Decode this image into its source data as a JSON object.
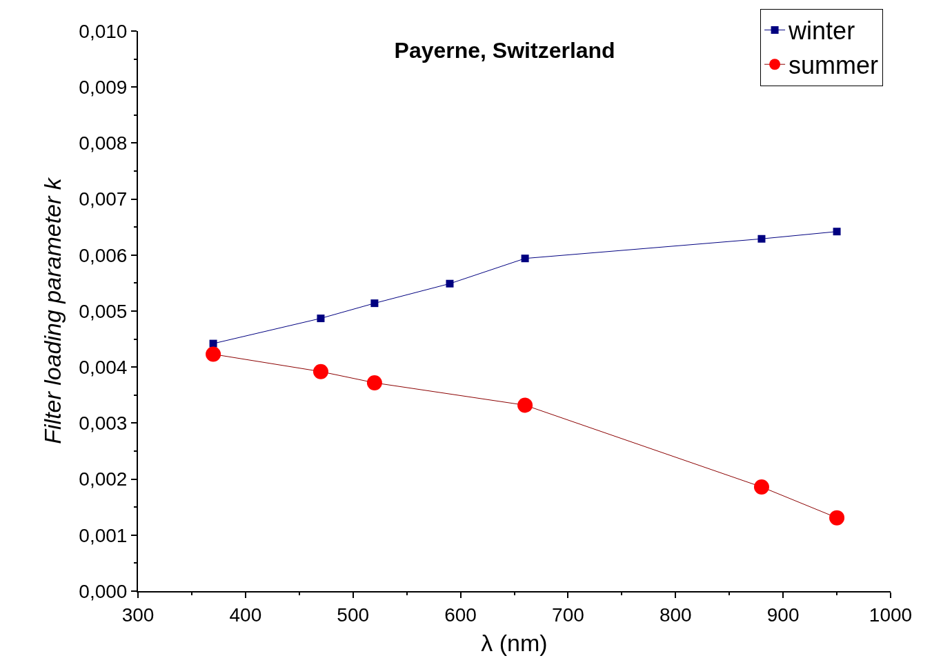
{
  "chart_data": {
    "type": "line",
    "title": "Payerne, Switzerland",
    "xlabel": "λ (nm)",
    "ylabel": "Filter loading parameter k",
    "xlim": [
      300,
      1000
    ],
    "ylim": [
      0,
      0.01
    ],
    "xticks": [
      300,
      400,
      500,
      600,
      700,
      800,
      900,
      1000,
      {
        "value": 350,
        "label": null
      },
      {
        "value": 450,
        "label": null
      },
      {
        "value": 550,
        "label": null
      },
      {
        "value": 650,
        "label": null
      },
      {
        "value": 750,
        "label": null
      },
      {
        "value": 850,
        "label": null
      },
      {
        "value": 950,
        "label": null
      }
    ],
    "yticks": [
      {
        "value": 0,
        "label": "0,000"
      },
      {
        "value": 0.001,
        "label": "0,001"
      },
      {
        "value": 0.002,
        "label": "0,002"
      },
      {
        "value": 0.003,
        "label": "0,003"
      },
      {
        "value": 0.004,
        "label": "0,004"
      },
      {
        "value": 0.005,
        "label": "0,005"
      },
      {
        "value": 0.006,
        "label": "0,006"
      },
      {
        "value": 0.007,
        "label": "0,007"
      },
      {
        "value": 0.008,
        "label": "0,008"
      },
      {
        "value": 0.009,
        "label": "0,009"
      },
      {
        "value": 0.01,
        "label": "0,010"
      },
      {
        "value": 0.0005,
        "label": null
      },
      {
        "value": 0.0015,
        "label": null
      },
      {
        "value": 0.0025,
        "label": null
      },
      {
        "value": 0.0035,
        "label": null
      },
      {
        "value": 0.0045,
        "label": null
      },
      {
        "value": 0.0055,
        "label": null
      },
      {
        "value": 0.0065,
        "label": null
      },
      {
        "value": 0.0075,
        "label": null
      },
      {
        "value": 0.0085,
        "label": null
      },
      {
        "value": 0.0095,
        "label": null
      }
    ],
    "legend": "top right",
    "line_style": "solid",
    "series": [
      {
        "name": "winter",
        "color": "#000080",
        "marker": "square",
        "x": [
          370,
          470,
          520,
          590,
          660,
          880,
          950
        ],
        "values": [
          0.00442,
          0.00487,
          0.00514,
          0.00549,
          0.00594,
          0.00629,
          0.00642
        ]
      },
      {
        "name": "summer",
        "color": "#ff0000",
        "marker": "circle",
        "x": [
          370,
          470,
          520,
          660,
          880,
          950
        ],
        "values": [
          0.00423,
          0.00392,
          0.00372,
          0.00332,
          0.00186,
          0.00131
        ]
      }
    ]
  }
}
